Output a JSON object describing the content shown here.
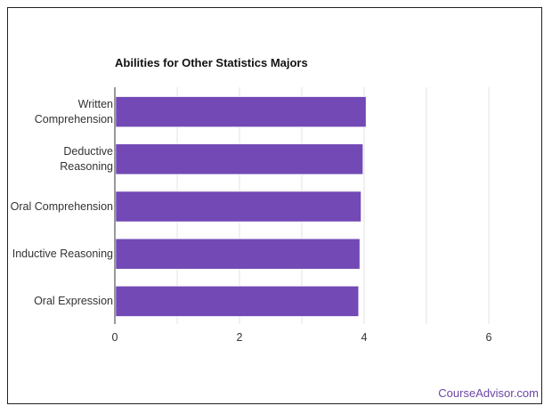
{
  "chart_data": {
    "type": "bar",
    "orientation": "horizontal",
    "title": "Abilities for Other Statistics Majors",
    "categories": [
      "Written Comprehension",
      "Deductive Reasoning",
      "Oral Comprehension",
      "Inductive Reasoning",
      "Oral Expression"
    ],
    "category_lines": [
      [
        "Written",
        "Comprehension"
      ],
      [
        "Deductive",
        "Reasoning"
      ],
      [
        "Oral Comprehension"
      ],
      [
        "Inductive Reasoning"
      ],
      [
        "Oral Expression"
      ]
    ],
    "values": [
      4.03,
      3.98,
      3.95,
      3.93,
      3.91
    ],
    "xlim": [
      0,
      6
    ],
    "xticks": [
      0,
      2,
      4,
      6
    ],
    "xtick_labels": [
      "0",
      "2",
      "4",
      "6"
    ],
    "grid": true,
    "bar_color": "#7249b5",
    "xlabel": "",
    "ylabel": ""
  },
  "watermark": "CourseAdvisor.com",
  "colors": {
    "watermark": "#6b47a8",
    "grid": "#e3e3e3",
    "axis": "#333333"
  }
}
